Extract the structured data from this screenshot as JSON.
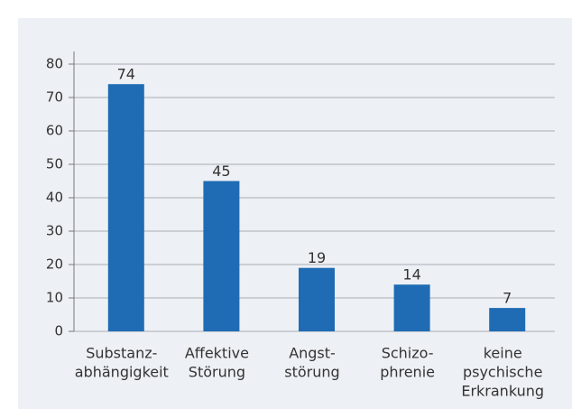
{
  "chart_data": {
    "type": "bar",
    "categories": [
      [
        "Substanz-",
        "abhängigkeit"
      ],
      [
        "Affektive",
        "Störung"
      ],
      [
        "Angst-",
        "störung"
      ],
      [
        "Schizo-",
        "phrenie"
      ],
      [
        "keine",
        "psychische",
        "Erkrankung"
      ]
    ],
    "values": [
      74,
      45,
      19,
      14,
      7
    ],
    "color": "#1f6cb4",
    "ylim": [
      0,
      80
    ],
    "yticks": [
      0,
      10,
      20,
      30,
      40,
      50,
      60,
      70,
      80
    ],
    "grid": true
  }
}
